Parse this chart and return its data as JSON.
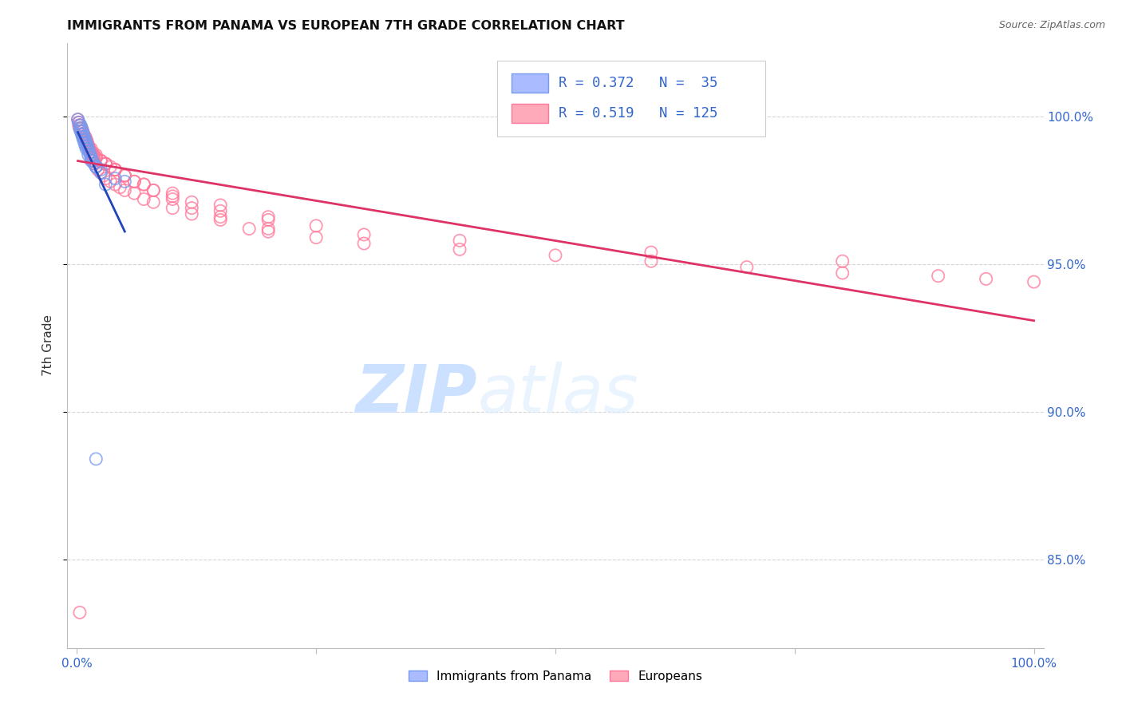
{
  "title": "IMMIGRANTS FROM PANAMA VS EUROPEAN 7TH GRADE CORRELATION CHART",
  "source": "Source: ZipAtlas.com",
  "ylabel": "7th Grade",
  "panama_color": "#7799ee",
  "european_color": "#ff7799",
  "panama_R": 0.372,
  "panama_N": 35,
  "european_R": 0.519,
  "european_N": 125,
  "panama_line_color": "#2244bb",
  "european_line_color": "#dd3366",
  "legend_label_panama": "Immigrants from Panama",
  "legend_label_european": "Europeans",
  "xlim": [
    0.0,
    1.0
  ],
  "ylim": [
    0.82,
    1.025
  ],
  "yticks": [
    0.85,
    0.9,
    0.95,
    1.0
  ],
  "ytick_labels": [
    "85.0%",
    "90.0%",
    "95.0%",
    "100.0%"
  ],
  "panama_x": [
    0.001,
    0.002,
    0.003,
    0.004,
    0.005,
    0.006,
    0.007,
    0.008,
    0.009,
    0.01,
    0.011,
    0.012,
    0.013,
    0.014,
    0.015,
    0.016,
    0.018,
    0.02,
    0.025,
    0.003,
    0.004,
    0.005,
    0.006,
    0.007,
    0.008,
    0.009,
    0.01,
    0.012,
    0.015,
    0.02,
    0.025,
    0.04,
    0.05,
    0.02,
    0.03
  ],
  "panama_y": [
    0.999,
    0.998,
    0.997,
    0.997,
    0.996,
    0.995,
    0.994,
    0.993,
    0.992,
    0.991,
    0.99,
    0.989,
    0.988,
    0.987,
    0.986,
    0.985,
    0.984,
    0.983,
    0.982,
    0.996,
    0.995,
    0.994,
    0.993,
    0.992,
    0.991,
    0.99,
    0.989,
    0.987,
    0.985,
    0.983,
    0.981,
    0.979,
    0.978,
    0.884,
    0.977
  ],
  "european_x": [
    0.001,
    0.002,
    0.003,
    0.004,
    0.005,
    0.006,
    0.007,
    0.008,
    0.009,
    0.01,
    0.011,
    0.012,
    0.013,
    0.015,
    0.016,
    0.017,
    0.018,
    0.019,
    0.02,
    0.022,
    0.025,
    0.028,
    0.03,
    0.035,
    0.04,
    0.045,
    0.05,
    0.06,
    0.07,
    0.08,
    0.1,
    0.12,
    0.15,
    0.18,
    0.2,
    0.25,
    0.3,
    0.4,
    0.5,
    0.6,
    0.7,
    0.8,
    0.9,
    0.95,
    1.0,
    0.002,
    0.003,
    0.004,
    0.005,
    0.006,
    0.007,
    0.008,
    0.009,
    0.01,
    0.011,
    0.012,
    0.013,
    0.015,
    0.017,
    0.02,
    0.025,
    0.03,
    0.035,
    0.04,
    0.05,
    0.06,
    0.08,
    0.1,
    0.12,
    0.15,
    0.2,
    0.002,
    0.003,
    0.004,
    0.005,
    0.006,
    0.007,
    0.008,
    0.009,
    0.01,
    0.012,
    0.015,
    0.018,
    0.02,
    0.025,
    0.03,
    0.04,
    0.05,
    0.07,
    0.1,
    0.15,
    0.2,
    0.003,
    0.004,
    0.005,
    0.006,
    0.008,
    0.01,
    0.015,
    0.02,
    0.025,
    0.03,
    0.04,
    0.05,
    0.06,
    0.07,
    0.08,
    0.1,
    0.12,
    0.15,
    0.2,
    0.25,
    0.3,
    0.4,
    0.6,
    0.8,
    0.003
  ],
  "european_y": [
    0.999,
    0.998,
    0.997,
    0.996,
    0.996,
    0.995,
    0.994,
    0.993,
    0.993,
    0.992,
    0.991,
    0.99,
    0.989,
    0.988,
    0.987,
    0.986,
    0.985,
    0.984,
    0.983,
    0.982,
    0.981,
    0.98,
    0.979,
    0.978,
    0.977,
    0.976,
    0.975,
    0.974,
    0.972,
    0.971,
    0.969,
    0.967,
    0.965,
    0.962,
    0.961,
    0.959,
    0.957,
    0.955,
    0.953,
    0.951,
    0.949,
    0.947,
    0.946,
    0.945,
    0.944,
    0.998,
    0.997,
    0.996,
    0.995,
    0.995,
    0.994,
    0.993,
    0.992,
    0.992,
    0.991,
    0.99,
    0.989,
    0.988,
    0.987,
    0.986,
    0.985,
    0.984,
    0.983,
    0.982,
    0.98,
    0.978,
    0.975,
    0.972,
    0.969,
    0.966,
    0.962,
    0.997,
    0.996,
    0.996,
    0.995,
    0.994,
    0.993,
    0.993,
    0.992,
    0.991,
    0.99,
    0.988,
    0.987,
    0.986,
    0.985,
    0.984,
    0.982,
    0.98,
    0.977,
    0.974,
    0.97,
    0.966,
    0.997,
    0.996,
    0.995,
    0.994,
    0.993,
    0.991,
    0.989,
    0.987,
    0.985,
    0.984,
    0.982,
    0.98,
    0.978,
    0.977,
    0.975,
    0.973,
    0.971,
    0.968,
    0.965,
    0.963,
    0.96,
    0.958,
    0.954,
    0.951,
    0.832
  ]
}
